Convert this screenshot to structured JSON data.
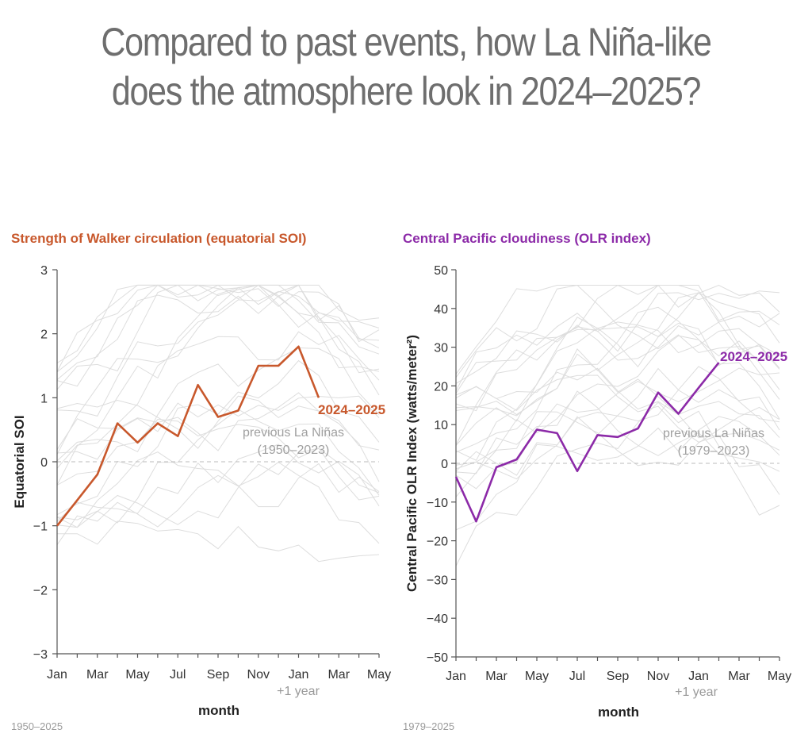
{
  "title": {
    "line1": "Compared to past events, how La Niña-like",
    "line2": "does the atmosphere look in 2024–2025?"
  },
  "colors": {
    "soi": "#c8582c",
    "olr": "#8c2aa8",
    "background_lines": "#dddddd",
    "zero_line": "#bbbbbb"
  },
  "chart_data": [
    {
      "type": "line",
      "title": "Strength of Walker circulation (equatorial SOI)",
      "xlabel": "month",
      "ylabel": "Equatorial SOI",
      "x_ticks": [
        "Jan",
        "Mar",
        "May",
        "Jul",
        "Sep",
        "Nov",
        "Jan",
        "Mar",
        "May"
      ],
      "next_year_label": "+1 year",
      "ylim": [
        -3,
        3
      ],
      "y_ticks": [
        "3",
        "2",
        "1",
        "0",
        "−1",
        "−2",
        "−3"
      ],
      "y_tick_values": [
        3,
        2,
        1,
        0,
        -1,
        -2,
        -3
      ],
      "series": [
        {
          "name": "2024–2025",
          "months": [
            1,
            2,
            3,
            4,
            5,
            6,
            7,
            8,
            9,
            10,
            11,
            12,
            13,
            14
          ],
          "values": [
            -1.0,
            -0.6,
            -0.2,
            0.6,
            0.3,
            0.6,
            0.4,
            1.2,
            0.7,
            0.8,
            1.5,
            1.5,
            1.8,
            1.0
          ]
        }
      ],
      "background_annotation": [
        "previous La Niñas",
        "(1950–2023)"
      ],
      "source": "1950–2025"
    },
    {
      "type": "line",
      "title": "Central Pacific cloudiness (OLR index)",
      "xlabel": "month",
      "ylabel": "Central Pacific OLR Index (watts/meter²)",
      "x_ticks": [
        "Jan",
        "Mar",
        "May",
        "Jul",
        "Sep",
        "Nov",
        "Jan",
        "Mar",
        "May"
      ],
      "next_year_label": "+1 year",
      "ylim": [
        -50,
        50
      ],
      "y_ticks": [
        "50",
        "40",
        "30",
        "20",
        "10",
        "0",
        "−10",
        "−20",
        "−30",
        "−40",
        "−50"
      ],
      "y_tick_values": [
        50,
        40,
        30,
        20,
        10,
        0,
        -10,
        -20,
        -30,
        -40,
        -50
      ],
      "series": [
        {
          "name": "2024–2025",
          "months": [
            1,
            2,
            3,
            4,
            5,
            6,
            7,
            8,
            9,
            10,
            11,
            12,
            13,
            14
          ],
          "values": [
            -3.5,
            -15.0,
            -1.0,
            1.0,
            8.7,
            7.8,
            -2.0,
            7.3,
            6.8,
            9.0,
            18.3,
            12.8,
            19.5,
            26.0
          ]
        }
      ],
      "background_annotation": [
        "previous La Niñas",
        "(1979–2023)"
      ],
      "source": "1979–2025"
    }
  ]
}
